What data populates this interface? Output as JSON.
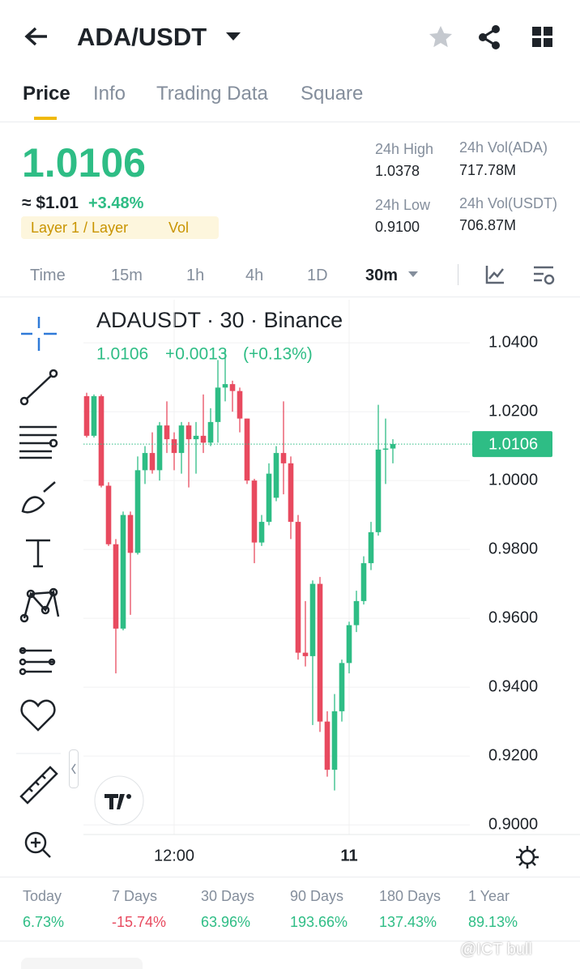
{
  "header": {
    "title": "ADA/USDT"
  },
  "tabs": [
    "Price",
    "Info",
    "Trading Data",
    "Square"
  ],
  "ticker": {
    "price": "1.0106",
    "approx": "≈ $1.01",
    "change": "+3.48%",
    "tag": "Layer 1 / Layer",
    "tag2": "Vol",
    "stats": [
      {
        "label": "24h High",
        "value": "1.0378"
      },
      {
        "label": "24h Vol(ADA)",
        "value": "717.78M"
      },
      {
        "label": "24h Low",
        "value": "0.9100"
      },
      {
        "label": "24h Vol(USDT)",
        "value": "706.87M"
      }
    ]
  },
  "intervals": [
    "Time",
    "15m",
    "1h",
    "4h",
    "1D",
    "30m"
  ],
  "chart_data": {
    "type": "candlestick",
    "title": "ADAUSDT · 30 · Binance",
    "legend": {
      "close": "1.0106",
      "change": "+0.0013",
      "change_pct": "(+0.13%)"
    },
    "categories": [
      null,
      null,
      null,
      null,
      null,
      null,
      null,
      null,
      null,
      null,
      null,
      null,
      "12:00",
      null,
      null,
      null,
      null,
      null,
      null,
      null,
      null,
      null,
      null,
      null,
      null,
      null,
      null,
      null,
      null,
      null,
      null,
      null,
      null,
      null,
      null,
      null,
      "11",
      null,
      null,
      null,
      null,
      null,
      null
    ],
    "open": [
      1.0245,
      1.013,
      1.0245,
      0.9985,
      0.9815,
      0.957,
      0.99,
      0.979,
      1.003,
      1.008,
      1.003,
      1.016,
      1.012,
      1.008,
      1.016,
      1.012,
      1.013,
      1.011,
      1.017,
      1.027,
      1.028,
      1.026,
      1.018,
      1.0,
      0.982,
      0.988,
      0.995,
      1.008,
      1.005,
      0.988,
      0.95,
      0.949,
      0.97,
      0.93,
      0.916,
      0.933,
      0.947,
      0.958,
      0.965,
      0.976,
      0.985,
      1.009,
      1.0093
    ],
    "high": [
      1.0255,
      1.025,
      1.025,
      0.9995,
      0.983,
      0.991,
      0.991,
      1.007,
      1.01,
      1.014,
      1.017,
      1.023,
      1.014,
      1.017,
      1.017,
      1.017,
      1.025,
      1.021,
      1.035,
      1.0378,
      1.029,
      1.027,
      1.018,
      1.0005,
      0.99,
      1.005,
      1.01,
      1.023,
      1.007,
      0.99,
      0.965,
      0.971,
      0.972,
      0.933,
      0.938,
      0.948,
      0.959,
      0.968,
      0.978,
      0.988,
      1.022,
      1.018,
      1.012
    ],
    "low": [
      1.0125,
      1.0125,
      0.998,
      0.981,
      0.944,
      0.9565,
      0.961,
      0.9785,
      0.999,
      1.002,
      1.0,
      1.008,
      1.003,
      1.002,
      0.998,
      1.002,
      1.008,
      1.01,
      1.011,
      1.023,
      1.02,
      1.014,
      0.999,
      0.976,
      0.981,
      0.987,
      0.994,
      0.996,
      0.983,
      0.948,
      0.946,
      0.929,
      0.927,
      0.914,
      0.91,
      0.93,
      0.944,
      0.956,
      0.964,
      0.974,
      0.984,
      0.999,
      1.005
    ],
    "close": [
      1.013,
      1.0245,
      0.9985,
      0.9815,
      0.957,
      0.99,
      0.979,
      1.003,
      1.008,
      1.003,
      1.016,
      1.012,
      1.008,
      1.016,
      1.012,
      1.013,
      1.011,
      1.017,
      1.027,
      1.028,
      1.026,
      1.018,
      1.0,
      0.982,
      0.988,
      1.002,
      1.008,
      1.005,
      0.988,
      0.95,
      0.949,
      0.97,
      0.93,
      0.916,
      0.933,
      0.947,
      0.958,
      0.965,
      0.976,
      0.985,
      1.009,
      1.0093,
      1.0106
    ],
    "up_color": "#2ebd85",
    "down_color": "#e84a5f",
    "last_price": 1.0106,
    "ylim": [
      0.8972,
      1.0525
    ],
    "yticks": [
      {
        "value": 1.04,
        "label": "1.0400"
      },
      {
        "value": 1.02,
        "label": "1.0200"
      },
      {
        "value": 1.0,
        "label": "1.0000"
      },
      {
        "value": 0.98,
        "label": "0.9800"
      },
      {
        "value": 0.96,
        "label": "0.9600"
      },
      {
        "value": 0.94,
        "label": "0.9400"
      },
      {
        "value": 0.92,
        "label": "0.9200"
      },
      {
        "value": 0.9,
        "label": "0.9000"
      }
    ],
    "grid": true
  },
  "performance": [
    {
      "label": "Today",
      "value": "6.73%"
    },
    {
      "label": "7 Days",
      "value": "-15.74%"
    },
    {
      "label": "30 Days",
      "value": "63.96%"
    },
    {
      "label": "90 Days",
      "value": "193.66%"
    },
    {
      "label": "180 Days",
      "value": "137.43%"
    },
    {
      "label": "1 Year",
      "value": "89.13%"
    }
  ],
  "watermark": "@ICT bull"
}
